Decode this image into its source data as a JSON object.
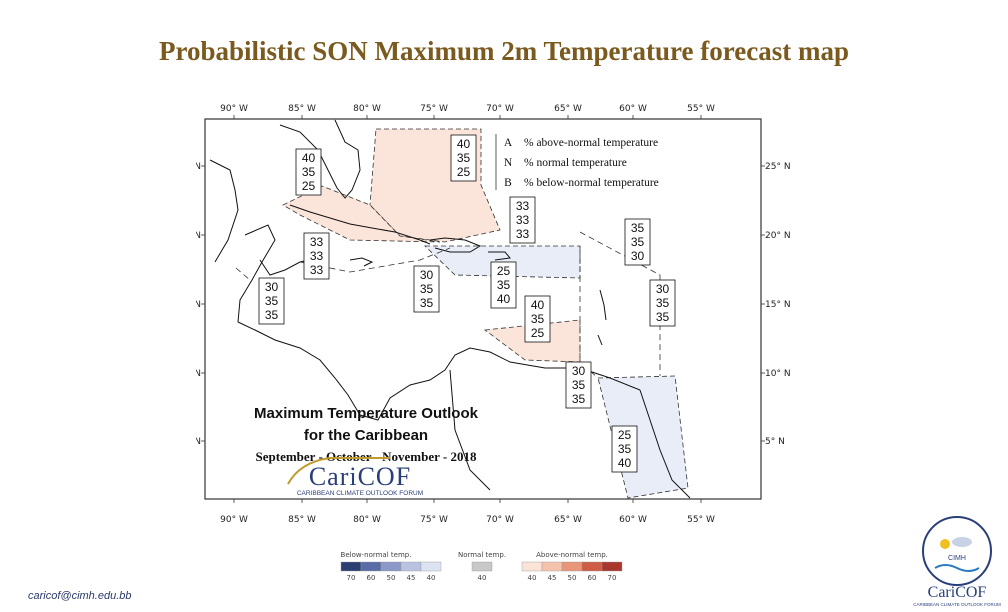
{
  "title": "Probabilistic SON Maximum 2m Temperature forecast map",
  "footer_email": "caricof@cimh.edu.bb",
  "map": {
    "longitude_labels": [
      "90° W",
      "85° W",
      "80° W",
      "75° W",
      "70° W",
      "65° W",
      "60° W",
      "55° W"
    ],
    "latitude_labels": [
      "25° N",
      "20° N",
      "15° N",
      "10° N",
      "5° N"
    ],
    "key": {
      "a_label": "A",
      "a_text": "% above-normal temperature",
      "n_label": "N",
      "n_text": "% normal temperature",
      "b_label": "B",
      "b_text": "% below-normal temperature"
    },
    "outlook_title_line1": "Maximum Temperature Outlook",
    "outlook_title_line2": "for the Caribbean",
    "outlook_period": "September - October - November - 2018",
    "caricof_logo_text": "CariCOF",
    "caricof_logo_subtext": "CARIBBEAN CLIMATE OUTLOOK FORUM",
    "probability_boxes": [
      {
        "a": "40",
        "n": "35",
        "b": "25"
      },
      {
        "a": "40",
        "n": "35",
        "b": "25"
      },
      {
        "a": "33",
        "n": "33",
        "b": "33"
      },
      {
        "a": "33",
        "n": "33",
        "b": "33"
      },
      {
        "a": "30",
        "n": "35",
        "b": "35"
      },
      {
        "a": "30",
        "n": "35",
        "b": "35"
      },
      {
        "a": "25",
        "n": "35",
        "b": "40"
      },
      {
        "a": "35",
        "n": "35",
        "b": "30"
      },
      {
        "a": "30",
        "n": "35",
        "b": "35"
      },
      {
        "a": "40",
        "n": "35",
        "b": "25"
      },
      {
        "a": "30",
        "n": "35",
        "b": "35"
      },
      {
        "a": "25",
        "n": "35",
        "b": "40"
      }
    ]
  },
  "legend": {
    "below_label": "Below-normal temp.",
    "normal_label": "Normal temp.",
    "above_label": "Above-normal temp.",
    "below_values": [
      "70",
      "60",
      "50",
      "45",
      "40"
    ],
    "normal_values": [
      "40"
    ],
    "above_values": [
      "40",
      "45",
      "50",
      "60",
      "70"
    ],
    "below_colors": [
      "#2c3f73",
      "#5a6ca6",
      "#8c99c8",
      "#b9c2e0",
      "#dde2f1"
    ],
    "normal_colors": [
      "#c8c8c8"
    ],
    "above_colors": [
      "#fbe3d8",
      "#f5c2ad",
      "#e8957a",
      "#cf5c45",
      "#a8382e"
    ]
  },
  "org_logo": {
    "text": "CIMH",
    "bottom_text": "CariCOF",
    "bottom_subtext": "CARIBBEAN CLIMATE OUTLOOK FORUM"
  }
}
